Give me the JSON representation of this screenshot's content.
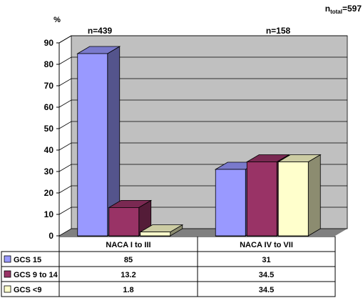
{
  "chart_data": {
    "type": "bar",
    "style": "3d-clustered-column",
    "title": "",
    "ylabel": "%",
    "xlabel": "",
    "ylim": [
      0,
      90
    ],
    "yticks": [
      0,
      10,
      20,
      30,
      40,
      50,
      60,
      70,
      80,
      90
    ],
    "grid": true,
    "total_note": {
      "prefix": "n",
      "subscript": "total",
      "value": "=597"
    },
    "categories": [
      "NACA I to III",
      "NACA IV to VII"
    ],
    "group_n": [
      "n=439",
      "n=158"
    ],
    "series": [
      {
        "name": "GCS 15",
        "values": [
          85,
          31
        ],
        "labels": [
          "85",
          "31"
        ],
        "color": "#9999ff"
      },
      {
        "name": "GCS 9 to 14",
        "values": [
          13.2,
          34.5
        ],
        "labels": [
          "13.2",
          "34.5"
        ],
        "color": "#993366"
      },
      {
        "name": "GCS <9",
        "values": [
          1.8,
          34.5
        ],
        "labels": [
          "1.8",
          "34.5"
        ],
        "color": "#ffffcc"
      }
    ],
    "legend": "data-table",
    "colors": {
      "wall": "#c0c0c0",
      "floor": "#808080",
      "grid": "#000000"
    }
  }
}
